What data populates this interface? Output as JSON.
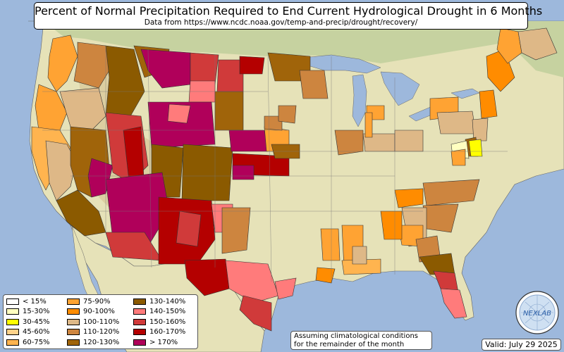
{
  "title": "Percent of Normal Precipitation Required to End Current Hydrological Drought in 6 Months",
  "subtitle": "Data from https://www.ncdc.noaa.gov/temp-and-precip/drought/recovery/",
  "note_line1": "Assuming climatological conditions",
  "note_line2": "for the remainder of the month",
  "valid": "Valid: July 29 2025",
  "logo_text": "NEXLAB",
  "colors": {
    "ocean": "#9db8dc",
    "land": "#e6e2b8",
    "land_green": "#c6d2a0",
    "mountain": "#b59a6a",
    "lake": "#9db8dc",
    "border": "#444444"
  },
  "legend": [
    {
      "label": "< 15%",
      "color": "#ffffff"
    },
    {
      "label": "15-30%",
      "color": "#ffffc0"
    },
    {
      "label": "30-45%",
      "color": "#ffff00"
    },
    {
      "label": "45-60%",
      "color": "#ffd28a"
    },
    {
      "label": "60-75%",
      "color": "#ffb44f"
    },
    {
      "label": "75-90%",
      "color": "#ffa333"
    },
    {
      "label": "90-100%",
      "color": "#ff8c00"
    },
    {
      "label": "100-110%",
      "color": "#deb887"
    },
    {
      "label": "110-120%",
      "color": "#cd853f"
    },
    {
      "label": "120-130%",
      "color": "#a0640a"
    },
    {
      "label": "130-140%",
      "color": "#8b5a00"
    },
    {
      "label": "140-150%",
      "color": "#ff7b7b"
    },
    {
      "label": "150-160%",
      "color": "#d03a3a"
    },
    {
      "label": "160-170%",
      "color": "#b40000"
    },
    {
      "label": "> 170%",
      "color": "#b0005a"
    }
  ]
}
